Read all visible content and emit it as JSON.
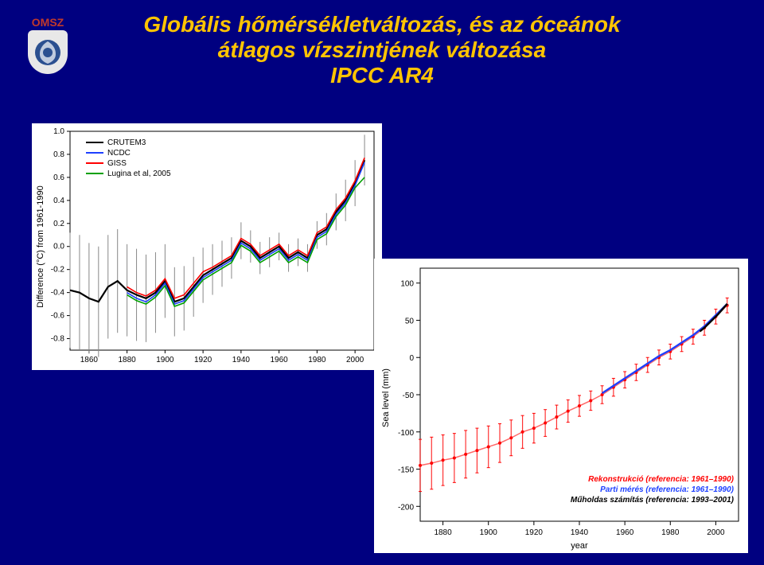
{
  "logo_text": "OMSZ",
  "title_line1": "Globális hőmérsékletváltozás, és az óceánok",
  "title_line2": "átlagos vízszintjének változása",
  "title_line3": "IPCC AR4",
  "chart1": {
    "type": "line",
    "ylabel": "Difference (°C) from 1961-1990",
    "xlim": [
      1850,
      2010
    ],
    "ylim": [
      -0.9,
      1.0
    ],
    "xticks": [
      1860,
      1880,
      1900,
      1920,
      1940,
      1960,
      1980,
      2000
    ],
    "yticks": [
      -0.8,
      -0.6,
      -0.4,
      -0.2,
      -0.0,
      0.2,
      0.4,
      0.6,
      0.8,
      1.0
    ],
    "background_color": "#ffffff",
    "axis_color": "#000000",
    "error_bar_color": "#888888",
    "legend": [
      {
        "label": "CRUTEM3",
        "color": "#000000"
      },
      {
        "label": "NCDC",
        "color": "#1e40ff"
      },
      {
        "label": "GISS",
        "color": "#ff0000"
      },
      {
        "label": "Lugina et al, 2005",
        "color": "#00a000"
      }
    ],
    "series_x": [
      1850,
      1855,
      1860,
      1865,
      1870,
      1875,
      1880,
      1885,
      1890,
      1895,
      1900,
      1905,
      1910,
      1915,
      1920,
      1925,
      1930,
      1935,
      1940,
      1945,
      1950,
      1955,
      1960,
      1965,
      1970,
      1975,
      1980,
      1985,
      1990,
      1995,
      2000,
      2005
    ],
    "series": {
      "CRUTEM3": [
        -0.38,
        -0.4,
        -0.45,
        -0.48,
        -0.35,
        -0.3,
        -0.38,
        -0.42,
        -0.45,
        -0.4,
        -0.3,
        -0.48,
        -0.45,
        -0.35,
        -0.25,
        -0.2,
        -0.15,
        -0.1,
        0.05,
        0.0,
        -0.1,
        -0.05,
        0.0,
        -0.1,
        -0.05,
        -0.1,
        0.1,
        0.15,
        0.3,
        0.4,
        0.55,
        0.75
      ],
      "NCDC": [
        null,
        null,
        null,
        null,
        null,
        null,
        -0.4,
        -0.45,
        -0.48,
        -0.42,
        -0.32,
        -0.5,
        -0.47,
        -0.37,
        -0.27,
        -0.22,
        -0.17,
        -0.12,
        0.03,
        -0.02,
        -0.12,
        -0.07,
        -0.02,
        -0.12,
        -0.07,
        -0.12,
        0.08,
        0.13,
        0.28,
        0.38,
        0.53,
        0.73
      ],
      "GISS": [
        null,
        null,
        null,
        null,
        null,
        null,
        -0.35,
        -0.4,
        -0.43,
        -0.38,
        -0.28,
        -0.45,
        -0.42,
        -0.32,
        -0.22,
        -0.18,
        -0.13,
        -0.08,
        0.07,
        0.02,
        -0.08,
        -0.03,
        0.02,
        -0.08,
        -0.03,
        -0.08,
        0.12,
        0.17,
        0.32,
        0.42,
        0.57,
        0.77
      ],
      "Lugina": [
        null,
        null,
        null,
        null,
        null,
        null,
        -0.42,
        -0.47,
        -0.5,
        -0.44,
        -0.34,
        -0.52,
        -0.49,
        -0.39,
        -0.29,
        -0.24,
        -0.19,
        -0.14,
        0.01,
        -0.04,
        -0.14,
        -0.09,
        -0.04,
        -0.14,
        -0.09,
        -0.14,
        0.06,
        0.11,
        0.26,
        0.36,
        0.51,
        0.6
      ]
    },
    "error_years": [
      1850,
      1855,
      1860,
      1865,
      1870,
      1875,
      1880,
      1885,
      1890,
      1895,
      1900,
      1905,
      1910,
      1915,
      1920,
      1925,
      1930,
      1935,
      1940,
      1945,
      1950,
      1955,
      1960,
      1965,
      1970,
      1975,
      1980,
      1985,
      1990,
      1995,
      2000,
      2005
    ],
    "error_half": [
      0.5,
      0.5,
      0.48,
      0.48,
      0.45,
      0.45,
      0.4,
      0.4,
      0.38,
      0.35,
      0.32,
      0.3,
      0.28,
      0.26,
      0.24,
      0.22,
      0.2,
      0.18,
      0.16,
      0.14,
      0.14,
      0.13,
      0.12,
      0.12,
      0.12,
      0.12,
      0.12,
      0.14,
      0.16,
      0.18,
      0.2,
      0.22
    ]
  },
  "chart2": {
    "type": "line",
    "ylabel": "Sea level (mm)",
    "xlabel": "year",
    "xlim": [
      1870,
      2010
    ],
    "ylim": [
      -220,
      120
    ],
    "xticks": [
      1880,
      1900,
      1920,
      1940,
      1960,
      1980,
      2000
    ],
    "yticks": [
      -200,
      -150,
      -100,
      -50,
      0,
      50,
      100
    ],
    "background_color": "#ffffff",
    "axis_color": "#000000",
    "annotations": [
      {
        "text": "Rekonstrukció (referencia: 1961–1990)",
        "color": "#ff0000"
      },
      {
        "text": "Parti mérés (referencia: 1961–1990)",
        "color": "#1e40ff"
      },
      {
        "text": "Műholdas számítás (referencia: 1993–2001)",
        "color": "#000000"
      }
    ],
    "recon_x": [
      1870,
      1875,
      1880,
      1885,
      1890,
      1895,
      1900,
      1905,
      1910,
      1915,
      1920,
      1925,
      1930,
      1935,
      1940,
      1945,
      1950,
      1955,
      1960,
      1965,
      1970,
      1975,
      1980,
      1985,
      1990,
      1995,
      2000,
      2005
    ],
    "recon_y": [
      -145,
      -142,
      -138,
      -135,
      -130,
      -125,
      -120,
      -115,
      -108,
      -100,
      -95,
      -88,
      -80,
      -72,
      -65,
      -58,
      -50,
      -40,
      -30,
      -20,
      -10,
      0,
      8,
      18,
      28,
      40,
      55,
      70
    ],
    "recon_err": [
      35,
      35,
      34,
      33,
      32,
      30,
      28,
      26,
      24,
      22,
      20,
      18,
      16,
      15,
      14,
      13,
      12,
      12,
      11,
      11,
      10,
      10,
      10,
      10,
      10,
      10,
      10,
      10
    ],
    "recon_color": "#ff0000",
    "tide_x": [
      1950,
      1955,
      1960,
      1965,
      1970,
      1975,
      1980,
      1985,
      1990,
      1995,
      2000,
      2005
    ],
    "tide_y": [
      -48,
      -38,
      -28,
      -18,
      -8,
      2,
      10,
      20,
      30,
      42,
      57,
      72
    ],
    "tide_color": "#1e40ff",
    "sat_x": [
      1993,
      1995,
      1997,
      1999,
      2001,
      2003,
      2005
    ],
    "sat_y": [
      35,
      40,
      46,
      52,
      58,
      65,
      72
    ],
    "sat_color": "#000000"
  }
}
